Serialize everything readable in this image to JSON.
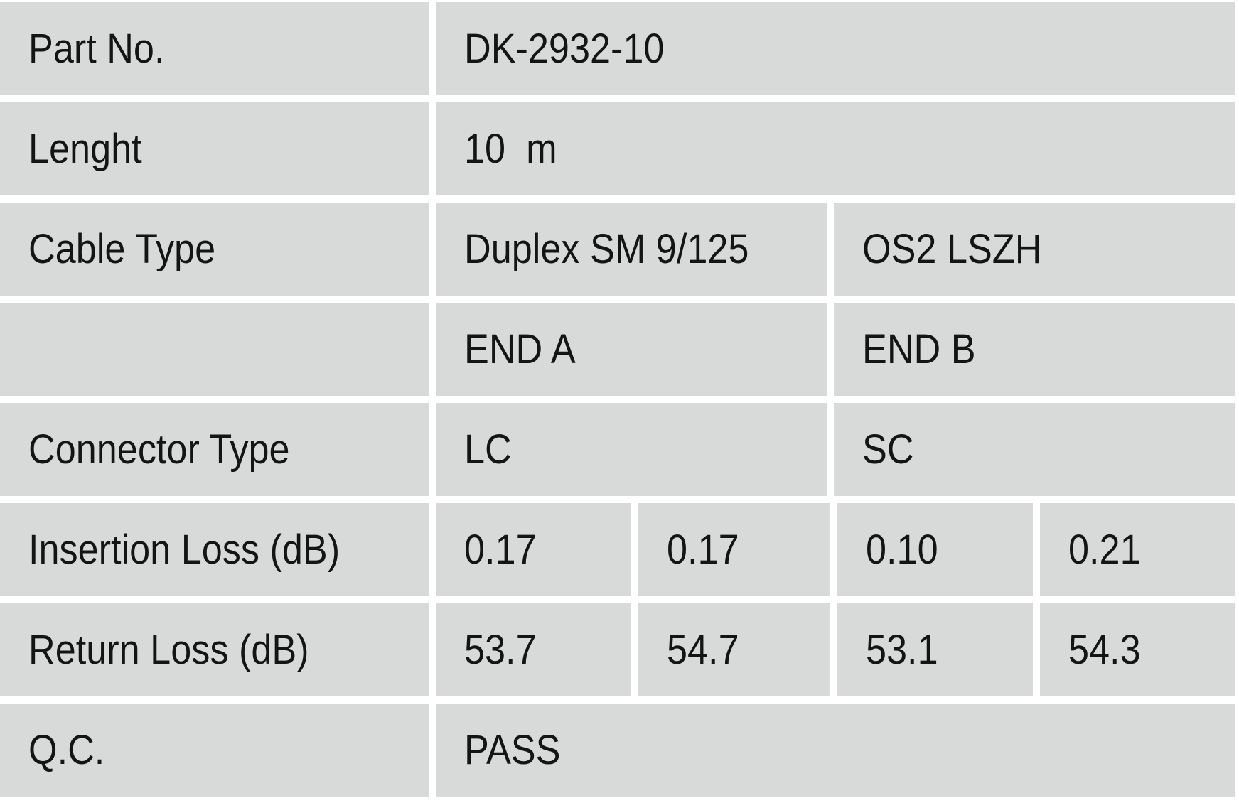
{
  "colors": {
    "cell_bg": "#d8dad9",
    "divider": "#ffffff",
    "text": "#141414"
  },
  "table": {
    "rows": [
      {
        "label": "Part No.",
        "value": "DK-2932-10"
      },
      {
        "label": "Lenght",
        "value": "10  m"
      },
      {
        "label": "Cable Type",
        "value_a": "Duplex SM 9/125",
        "value_b": "OS2 LSZH"
      },
      {
        "label": "",
        "value_a": "END A",
        "value_b": "END B"
      },
      {
        "label": "Connector Type",
        "value_a": "LC",
        "value_b": "SC"
      },
      {
        "label": "Insertion Loss (dB)",
        "values": [
          "0.17",
          "0.17",
          "0.10",
          "0.21"
        ]
      },
      {
        "label": "Return Loss (dB)",
        "values": [
          "53.7",
          "54.7",
          "53.1",
          "54.3"
        ]
      },
      {
        "label": "Q.C.",
        "value": "PASS"
      }
    ]
  }
}
